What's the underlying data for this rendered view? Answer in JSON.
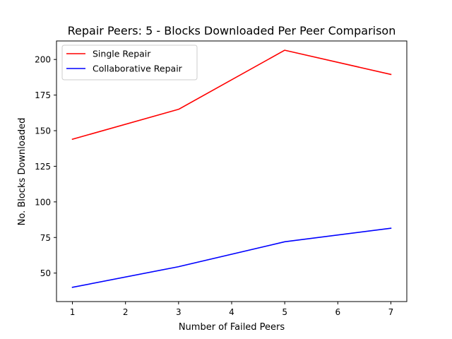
{
  "chart_data": {
    "type": "line",
    "title": "Repair Peers: 5 - Blocks Downloaded Per Peer Comparison",
    "xlabel": "Number of Failed Peers",
    "ylabel": "No. Blocks Downloaded",
    "x": [
      1,
      3,
      5,
      7
    ],
    "xlim": [
      0.7,
      7.3
    ],
    "ylim": [
      30,
      213
    ],
    "xticks": [
      1,
      2,
      3,
      4,
      5,
      6,
      7
    ],
    "yticks": [
      50,
      75,
      100,
      125,
      150,
      175,
      200
    ],
    "grid": false,
    "legend_position": "top-left",
    "series": [
      {
        "name": "Single Repair",
        "color": "#ff0000",
        "values": [
          144,
          165,
          206.5,
          189.5
        ]
      },
      {
        "name": "Collaborative Repair",
        "color": "#0000ff",
        "values": [
          40,
          54.5,
          72,
          81.5
        ]
      }
    ]
  }
}
